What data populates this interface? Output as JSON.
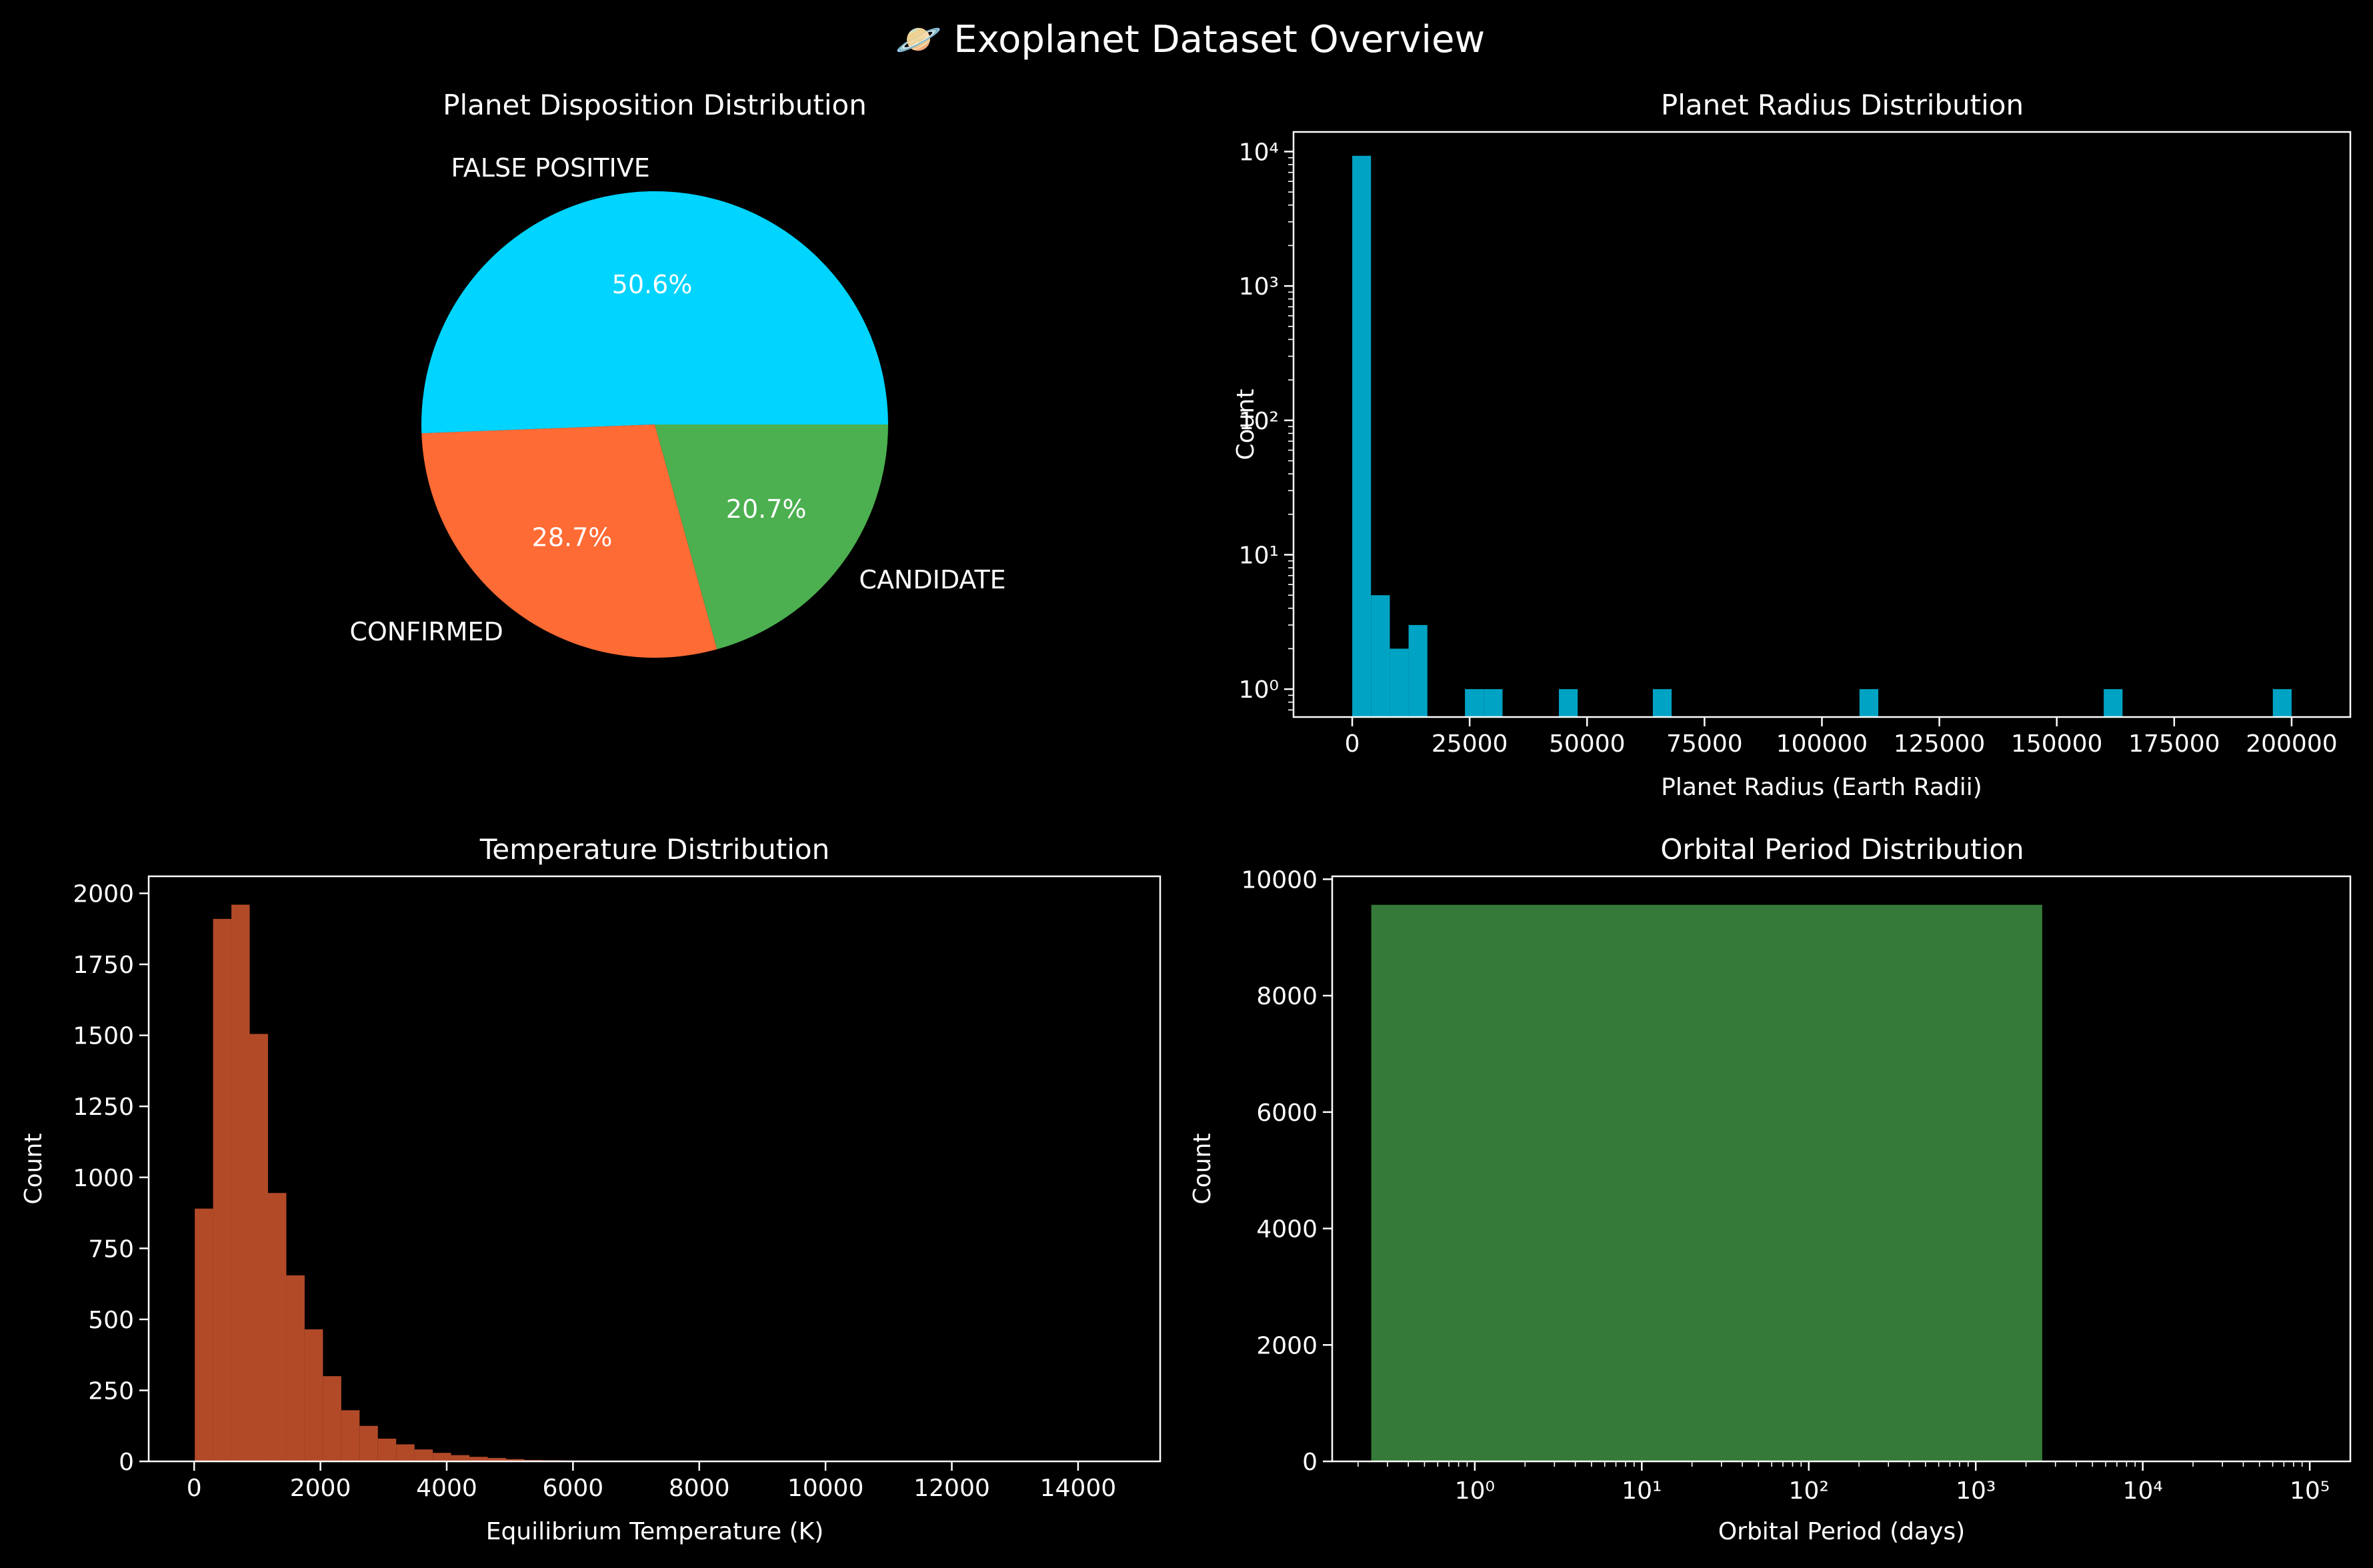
{
  "figure": {
    "suptitle": "🪐 Exoplanet Dataset Overview",
    "background": "#000000",
    "text_color": "#ffffff"
  },
  "chart_data": [
    {
      "type": "pie",
      "title": "Planet Disposition Distribution",
      "labels": [
        "FALSE POSITIVE",
        "CONFIRMED",
        "CANDIDATE"
      ],
      "values": [
        50.6,
        28.7,
        20.7
      ],
      "autopct": [
        "50.6%",
        "28.7%",
        "20.7%"
      ],
      "colors": [
        "#00d4ff",
        "#ff6b35",
        "#4caf50"
      ],
      "startangle_deg": 0
    },
    {
      "type": "bar",
      "subtype": "histogram",
      "title": "Planet Radius Distribution",
      "xlabel": "Planet Radius (Earth Radii)",
      "ylabel": "Count",
      "yscale": "log",
      "xlim": [
        -12500,
        212500
      ],
      "ylim": [
        0.62,
        14000
      ],
      "bin_width": 4000,
      "color": "#00a3c4",
      "xticks": [
        0,
        25000,
        50000,
        75000,
        100000,
        125000,
        150000,
        175000,
        200000
      ],
      "xticklabels": [
        "0",
        "25000",
        "50000",
        "75000",
        "100000",
        "125000",
        "150000",
        "175000",
        "200000"
      ],
      "yticks": [
        1,
        10,
        100,
        1000,
        10000
      ],
      "yticklabels": [
        "10⁰",
        "10¹",
        "10²",
        "10³",
        "10⁴"
      ],
      "bins": [
        {
          "x0": 0,
          "value": 9300
        },
        {
          "x0": 4000,
          "value": 5
        },
        {
          "x0": 8000,
          "value": 2
        },
        {
          "x0": 12000,
          "value": 3
        },
        {
          "x0": 24000,
          "value": 1
        },
        {
          "x0": 28000,
          "value": 1
        },
        {
          "x0": 44000,
          "value": 1
        },
        {
          "x0": 64000,
          "value": 1
        },
        {
          "x0": 108000,
          "value": 1
        },
        {
          "x0": 160000,
          "value": 1
        },
        {
          "x0": 196000,
          "value": 1
        }
      ]
    },
    {
      "type": "bar",
      "subtype": "histogram",
      "title": "Temperature Distribution",
      "xlabel": "Equilibrium Temperature (K)",
      "ylabel": "Count",
      "xlim": [
        -720,
        15300
      ],
      "ylim": [
        0,
        2060
      ],
      "bin_width": 290,
      "color": "#b24a28",
      "xticks": [
        0,
        2000,
        4000,
        6000,
        8000,
        10000,
        12000,
        14000
      ],
      "yticks": [
        0,
        250,
        500,
        750,
        1000,
        1250,
        1500,
        1750,
        2000
      ],
      "bins": [
        {
          "x0": 10,
          "value": 890
        },
        {
          "x0": 300,
          "value": 1910
        },
        {
          "x0": 590,
          "value": 1960
        },
        {
          "x0": 880,
          "value": 1505
        },
        {
          "x0": 1170,
          "value": 945
        },
        {
          "x0": 1460,
          "value": 655
        },
        {
          "x0": 1750,
          "value": 465
        },
        {
          "x0": 2040,
          "value": 300
        },
        {
          "x0": 2330,
          "value": 180
        },
        {
          "x0": 2620,
          "value": 125
        },
        {
          "x0": 2910,
          "value": 80
        },
        {
          "x0": 3200,
          "value": 60
        },
        {
          "x0": 3490,
          "value": 42
        },
        {
          "x0": 3780,
          "value": 30
        },
        {
          "x0": 4070,
          "value": 22
        },
        {
          "x0": 4360,
          "value": 16
        },
        {
          "x0": 4650,
          "value": 12
        },
        {
          "x0": 4940,
          "value": 8
        },
        {
          "x0": 5230,
          "value": 5
        },
        {
          "x0": 5520,
          "value": 4
        },
        {
          "x0": 5810,
          "value": 3
        },
        {
          "x0": 6100,
          "value": 3
        },
        {
          "x0": 6390,
          "value": 2
        },
        {
          "x0": 6680,
          "value": 1
        }
      ]
    },
    {
      "type": "bar",
      "subtype": "histogram",
      "title": "Orbital Period Distribution",
      "xlabel": "Orbital Period (days)",
      "ylabel": "Count",
      "xscale": "log",
      "xlim": [
        0.14,
        175000
      ],
      "ylim": [
        0,
        10050
      ],
      "color": "#357a38",
      "xticks": [
        1,
        10,
        100,
        1000,
        10000,
        100000
      ],
      "xticklabels": [
        "10⁰",
        "10¹",
        "10²",
        "10³",
        "10⁴",
        "10⁵"
      ],
      "yticks": [
        0,
        2000,
        4000,
        6000,
        8000,
        10000
      ],
      "bins": [
        {
          "x0": 0.24,
          "x1": 2500,
          "value": 9560
        }
      ]
    }
  ]
}
